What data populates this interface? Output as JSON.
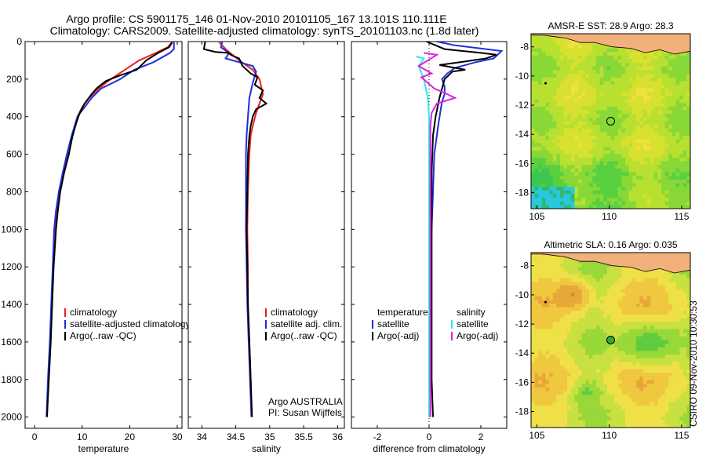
{
  "header": {
    "line1": "Argo profile: CS 5901175_146 01-Nov-2010 20101105_167 13.101S 110.111E",
    "line2": "Climatology: CARS2009. Satellite-adjusted climatology: synTS_20101103.nc (1.8d later)"
  },
  "credit": "CSIRO 09-Nov-2010 10:30:53",
  "colors": {
    "climatology": "#e8231a",
    "satellite": "#1f2fdc",
    "argo": "#000000",
    "sat_sal": "#2ee8e8",
    "argo_sal": "#e020e0"
  },
  "chart_data": [
    {
      "type": "line",
      "id": "temperature",
      "xlabel": "temperature",
      "ylabel": "",
      "xlim": [
        -2,
        31
      ],
      "ylim": [
        2060,
        0
      ],
      "xticks": [
        0,
        10,
        20,
        30
      ],
      "yticks": [
        0,
        200,
        400,
        600,
        800,
        1000,
        1200,
        1400,
        1600,
        1800,
        2000
      ],
      "legend": [
        "climatology",
        "satellite-adjusted climatology",
        "Argo(..raw -QC)"
      ],
      "series": [
        {
          "name": "climatology",
          "color": "#e8231a",
          "points": [
            [
              29.0,
              0
            ],
            [
              28.0,
              30
            ],
            [
              25.5,
              60
            ],
            [
              22.0,
              100
            ],
            [
              19.0,
              150
            ],
            [
              16.0,
              200
            ],
            [
              13.5,
              250
            ],
            [
              11.5,
              300
            ],
            [
              10.0,
              350
            ],
            [
              9.0,
              400
            ],
            [
              8.0,
              500
            ],
            [
              7.0,
              600
            ],
            [
              6.0,
              700
            ],
            [
              5.2,
              800
            ],
            [
              4.6,
              900
            ],
            [
              4.2,
              1000
            ],
            [
              3.9,
              1200
            ],
            [
              3.6,
              1400
            ],
            [
              3.3,
              1600
            ],
            [
              2.9,
              1800
            ],
            [
              2.6,
              2000
            ]
          ]
        },
        {
          "name": "satellite-adjusted climatology",
          "color": "#1f2fdc",
          "points": [
            [
              29.3,
              0
            ],
            [
              29.3,
              40
            ],
            [
              28.5,
              60
            ],
            [
              25.0,
              110
            ],
            [
              21.0,
              150
            ],
            [
              18.0,
              200
            ],
            [
              14.0,
              250
            ],
            [
              12.0,
              300
            ],
            [
              10.5,
              350
            ],
            [
              9.0,
              400
            ],
            [
              7.8,
              500
            ],
            [
              6.8,
              600
            ],
            [
              5.9,
              700
            ],
            [
              5.1,
              800
            ],
            [
              4.5,
              900
            ],
            [
              4.1,
              1000
            ],
            [
              3.8,
              1200
            ],
            [
              3.5,
              1400
            ],
            [
              3.2,
              1600
            ],
            [
              2.8,
              1800
            ],
            [
              2.5,
              2000
            ]
          ]
        },
        {
          "name": "Argo(..raw -QC)",
          "color": "#000000",
          "points": [
            [
              28.9,
              5
            ],
            [
              28.3,
              30
            ],
            [
              26.0,
              60
            ],
            [
              23.5,
              100
            ],
            [
              21.5,
              150
            ],
            [
              18.0,
              180
            ],
            [
              15.0,
              210
            ],
            [
              13.0,
              250
            ],
            [
              12.0,
              280
            ],
            [
              10.5,
              330
            ],
            [
              9.5,
              380
            ],
            [
              8.8,
              430
            ],
            [
              8.0,
              500
            ],
            [
              7.2,
              600
            ],
            [
              6.2,
              700
            ],
            [
              5.4,
              800
            ],
            [
              4.9,
              900
            ],
            [
              4.5,
              1000
            ],
            [
              4.0,
              1200
            ],
            [
              3.7,
              1400
            ],
            [
              3.4,
              1600
            ],
            [
              3.0,
              1800
            ],
            [
              2.6,
              2000
            ]
          ]
        }
      ]
    },
    {
      "type": "line",
      "id": "salinity",
      "xlabel": "salinity",
      "xlim": [
        33.8,
        36.1
      ],
      "ylim": [
        2060,
        0
      ],
      "xticks": [
        34,
        34.5,
        35,
        35.5,
        36
      ],
      "legend": [
        "climatology",
        "satellite adj. clim.",
        "Argo(..raw -QC)"
      ],
      "annotation": [
        "Argo AUSTRALIA",
        "PI: Susan Wijffels"
      ],
      "series": [
        {
          "name": "climatology",
          "color": "#e8231a",
          "points": [
            [
              34.25,
              0
            ],
            [
              34.35,
              40
            ],
            [
              34.55,
              100
            ],
            [
              34.75,
              150
            ],
            [
              34.85,
              200
            ],
            [
              34.9,
              280
            ],
            [
              34.85,
              330
            ],
            [
              34.8,
              380
            ],
            [
              34.75,
              450
            ],
            [
              34.72,
              500
            ],
            [
              34.7,
              600
            ],
            [
              34.68,
              800
            ],
            [
              34.67,
              1000
            ],
            [
              34.68,
              1200
            ],
            [
              34.68,
              1400
            ],
            [
              34.7,
              1600
            ],
            [
              34.72,
              1800
            ],
            [
              34.73,
              2000
            ]
          ]
        },
        {
          "name": "satellite adj. clim.",
          "color": "#1f2fdc",
          "points": [
            [
              34.3,
              0
            ],
            [
              34.28,
              30
            ],
            [
              34.4,
              60
            ],
            [
              34.35,
              90
            ],
            [
              34.55,
              110
            ],
            [
              34.75,
              130
            ],
            [
              34.8,
              160
            ],
            [
              34.75,
              220
            ],
            [
              34.7,
              300
            ],
            [
              34.68,
              400
            ],
            [
              34.66,
              500
            ],
            [
              34.65,
              600
            ],
            [
              34.65,
              800
            ],
            [
              34.65,
              1000
            ],
            [
              34.66,
              1200
            ],
            [
              34.67,
              1400
            ],
            [
              34.69,
              1600
            ],
            [
              34.71,
              1800
            ],
            [
              34.73,
              2000
            ]
          ]
        },
        {
          "name": "Argo(..raw -QC)",
          "color": "#000000",
          "points": [
            [
              34.05,
              0
            ],
            [
              34.03,
              40
            ],
            [
              34.2,
              55
            ],
            [
              34.38,
              60
            ],
            [
              34.45,
              75
            ],
            [
              34.55,
              90
            ],
            [
              34.6,
              130
            ],
            [
              34.72,
              170
            ],
            [
              34.82,
              190
            ],
            [
              34.78,
              230
            ],
            [
              34.9,
              260
            ],
            [
              34.85,
              300
            ],
            [
              34.95,
              330
            ],
            [
              34.8,
              360
            ],
            [
              34.75,
              400
            ],
            [
              34.72,
              450
            ],
            [
              34.7,
              500
            ],
            [
              34.68,
              600
            ],
            [
              34.67,
              800
            ],
            [
              34.66,
              1000
            ],
            [
              34.67,
              1200
            ],
            [
              34.68,
              1400
            ],
            [
              34.7,
              1600
            ],
            [
              34.72,
              1800
            ],
            [
              34.74,
              2000
            ]
          ]
        }
      ]
    },
    {
      "type": "line",
      "id": "difference",
      "xlabel": "difference from climatology",
      "xlim": [
        -3,
        3
      ],
      "ylim": [
        2060,
        0
      ],
      "xticks": [
        -2,
        0,
        2
      ],
      "legend_left": [
        "temperature",
        "satellite",
        "Argo(-adj)"
      ],
      "legend_right": [
        "salinity",
        "satellite",
        "Argo(-adj)"
      ],
      "series": [
        {
          "name": "temperature satellite",
          "color": "#1f2fdc",
          "points": [
            [
              0.3,
              0
            ],
            [
              1.0,
              20
            ],
            [
              2.8,
              50
            ],
            [
              2.5,
              90
            ],
            [
              1.8,
              110
            ],
            [
              1.0,
              140
            ],
            [
              0.7,
              170
            ],
            [
              0.5,
              200
            ],
            [
              0.6,
              240
            ],
            [
              0.6,
              280
            ],
            [
              0.5,
              320
            ],
            [
              0.45,
              360
            ],
            [
              0.35,
              450
            ],
            [
              0.3,
              500
            ],
            [
              0.2,
              600
            ],
            [
              0.15,
              800
            ],
            [
              0.1,
              1000
            ],
            [
              0.05,
              1200
            ],
            [
              0.05,
              1400
            ],
            [
              0.05,
              1600
            ],
            [
              0.05,
              1800
            ],
            [
              0.05,
              2000
            ]
          ]
        },
        {
          "name": "temperature Argo(-adj)",
          "color": "#000000",
          "points": [
            [
              -0.1,
              0
            ],
            [
              0.6,
              40
            ],
            [
              2.0,
              60
            ],
            [
              2.6,
              70
            ],
            [
              2.2,
              90
            ],
            [
              1.2,
              110
            ],
            [
              0.4,
              125
            ],
            [
              1.4,
              150
            ],
            [
              0.9,
              160
            ],
            [
              0.6,
              200
            ],
            [
              0.5,
              250
            ],
            [
              0.4,
              300
            ],
            [
              0.25,
              400
            ],
            [
              0.15,
              500
            ],
            [
              0.1,
              700
            ],
            [
              0.1,
              900
            ],
            [
              0.1,
              1200
            ],
            [
              0.1,
              1500
            ],
            [
              0.1,
              1800
            ],
            [
              0.15,
              2000
            ]
          ]
        },
        {
          "name": "salinity satellite",
          "color": "#2ee8e8",
          "points": [
            [
              -0.5,
              80
            ],
            [
              -0.2,
              90
            ],
            [
              -0.4,
              130
            ],
            [
              -0.2,
              200
            ],
            [
              -0.05,
              300
            ],
            [
              0.0,
              400
            ],
            [
              0.0,
              500
            ],
            [
              0.0,
              700
            ],
            [
              0.0,
              1000
            ],
            [
              0.0,
              1400
            ],
            [
              0.0,
              2000
            ]
          ]
        },
        {
          "name": "salinity Argo(-adj)",
          "color": "#e020e0",
          "points": [
            [
              -0.2,
              60
            ],
            [
              0.3,
              70
            ],
            [
              -0.4,
              130
            ],
            [
              0.1,
              170
            ],
            [
              -0.3,
              190
            ],
            [
              0.2,
              250
            ],
            [
              0.7,
              280
            ],
            [
              1.0,
              300
            ],
            [
              0.3,
              330
            ],
            [
              0.1,
              380
            ],
            [
              0.05,
              450
            ],
            [
              0.05,
              600
            ],
            [
              0.05,
              800
            ],
            [
              0.05,
              1000
            ],
            [
              0.05,
              1200
            ],
            [
              0.05,
              1400
            ],
            [
              0.05,
              1600
            ],
            [
              0.05,
              1800
            ],
            [
              0.05,
              2000
            ]
          ]
        }
      ]
    },
    {
      "type": "heatmap",
      "id": "sst-map",
      "title": "AMSR-E SST: 28.9 Argo: 28.3",
      "xlim": [
        104.6,
        115.6
      ],
      "ylim": [
        -19.1,
        -7.1
      ],
      "xticks": [
        105,
        110,
        115
      ],
      "yticks": [
        -8,
        -10,
        -12,
        -14,
        -16,
        -18
      ],
      "marker": [
        110.1,
        -13.1
      ]
    },
    {
      "type": "heatmap",
      "id": "sla-map",
      "title": "Altimetric SLA: 0.16 Argo: 0.035",
      "xlim": [
        104.6,
        115.6
      ],
      "ylim": [
        -19.1,
        -7.1
      ],
      "xticks": [
        105,
        110,
        115
      ],
      "yticks": [
        -8,
        -10,
        -12,
        -14,
        -16,
        -18
      ],
      "marker": [
        110.1,
        -13.1
      ]
    }
  ]
}
